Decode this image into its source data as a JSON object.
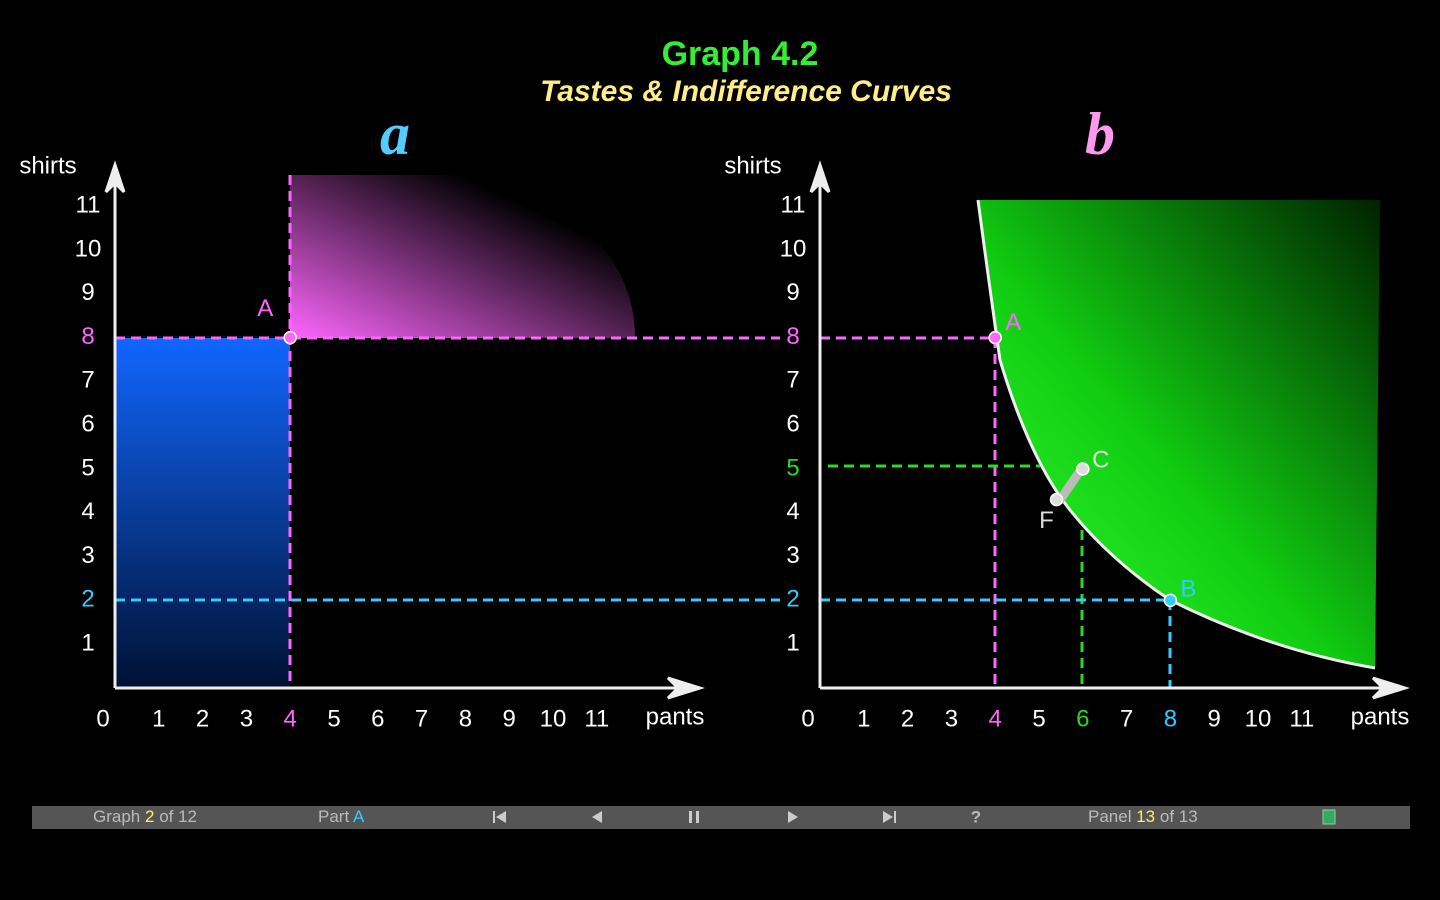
{
  "header": {
    "title": "Graph 4.2",
    "subtitle": "Tastes & Indifference Curves"
  },
  "panels": [
    {
      "label": "a",
      "label_color": "#55ccff",
      "y_label": "shirts",
      "x_label": "pants",
      "xticks": [
        0,
        1,
        2,
        3,
        4,
        5,
        6,
        7,
        8,
        9,
        10,
        11
      ],
      "yticks": [
        1,
        2,
        3,
        4,
        5,
        6,
        7,
        8,
        9,
        10,
        11
      ],
      "x_highlight": [
        {
          "value": 4,
          "color": "#ff66ff"
        }
      ],
      "y_highlight": [
        {
          "value": 8,
          "color": "#ff66ff"
        },
        {
          "value": 2,
          "color": "#33ccff"
        }
      ],
      "points": [
        {
          "label": "A",
          "x": 4,
          "y": 8,
          "color": "#ff66ff"
        }
      ]
    },
    {
      "label": "b",
      "label_color": "#ff99ee",
      "y_label": "shirts",
      "x_label": "pants",
      "xticks": [
        0,
        1,
        2,
        3,
        4,
        5,
        6,
        7,
        8,
        9,
        10,
        11
      ],
      "yticks": [
        1,
        2,
        3,
        4,
        5,
        6,
        7,
        8,
        9,
        10,
        11
      ],
      "x_highlight": [
        {
          "value": 4,
          "color": "#ff66ff"
        },
        {
          "value": 6,
          "color": "#22dd22"
        },
        {
          "value": 8,
          "color": "#33ccff"
        }
      ],
      "y_highlight": [
        {
          "value": 8,
          "color": "#ff66ff"
        },
        {
          "value": 5,
          "color": "#22dd22"
        },
        {
          "value": 2,
          "color": "#33ccff"
        }
      ],
      "points": [
        {
          "label": "A",
          "x": 4,
          "y": 8,
          "color": "#ff66ff"
        },
        {
          "label": "C",
          "x": 6,
          "y": 5,
          "color": "#dddddd"
        },
        {
          "label": "F",
          "x": 5.4,
          "y": 4.3,
          "color": "#dddddd"
        },
        {
          "label": "B",
          "x": 8,
          "y": 2,
          "color": "#33ccff"
        }
      ]
    }
  ],
  "nav": {
    "graph": [
      "Graph",
      "2",
      "of 12"
    ],
    "part": [
      "Part",
      "A"
    ],
    "panel": [
      "Panel",
      "13",
      "of 13"
    ],
    "help": "?"
  }
}
